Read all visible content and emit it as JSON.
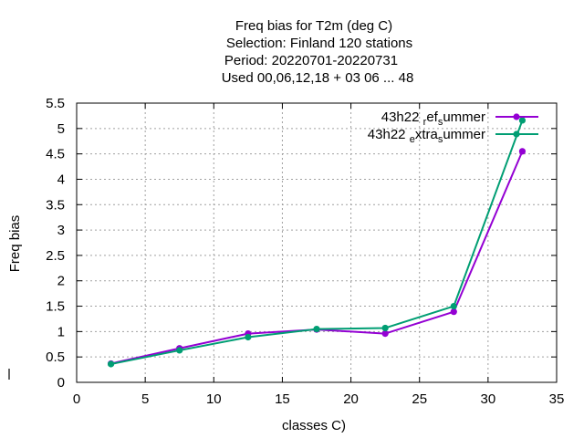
{
  "chart_data": {
    "type": "line",
    "title_lines": [
      "Freq bias  for T2m (deg C)",
      "Selection: Finland    120 stations",
      "Period: 20220701-20220731",
      "Used  00,06,12,18  + 03 06 ... 48"
    ],
    "xlabel": "classes C)",
    "ylabel": "Freq bias",
    "xlim": [
      0,
      35
    ],
    "ylim": [
      0,
      5.5
    ],
    "xticks": [
      "0",
      "5",
      "10",
      "15",
      "20",
      "25",
      "30",
      "35"
    ],
    "yticks": [
      "0",
      "0.5",
      "1",
      "1.5",
      "2",
      "2.5",
      "3",
      "3.5",
      "4",
      "4.5",
      "5",
      "5.5"
    ],
    "grid": true,
    "legend_position": "top-right",
    "series": [
      {
        "name_main": "43h22",
        "name_parts": [
          {
            "text": "r",
            "sub": true
          },
          {
            "text": "ef",
            "sub": false
          },
          {
            "text": "s",
            "sub": true
          },
          {
            "text": "ummer",
            "sub": false
          }
        ],
        "color": "#9400d3",
        "x": [
          2.5,
          7.5,
          12.5,
          17.5,
          22.5,
          27.5,
          32.5
        ],
        "y": [
          0.37,
          0.67,
          0.96,
          1.04,
          0.96,
          1.39,
          4.55
        ]
      },
      {
        "name_main": "43h22",
        "name_parts": [
          {
            "text": "e",
            "sub": true
          },
          {
            "text": "xtra",
            "sub": false
          },
          {
            "text": "s",
            "sub": true
          },
          {
            "text": "ummer",
            "sub": false
          }
        ],
        "color": "#009e73",
        "x": [
          2.5,
          7.5,
          12.5,
          17.5,
          22.5,
          27.5,
          32.5
        ],
        "y": [
          0.36,
          0.63,
          0.89,
          1.05,
          1.07,
          1.5,
          5.16
        ]
      }
    ]
  }
}
